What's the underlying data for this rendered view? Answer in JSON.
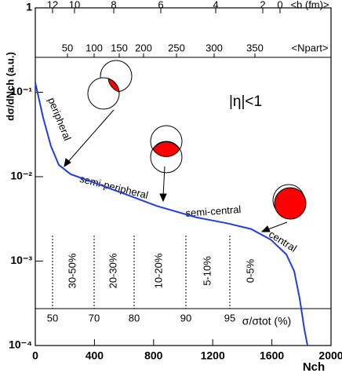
{
  "chart_data": {
    "type": "line",
    "xlabel": "Nch",
    "ylabel": "dσ/dNch (a.u.)",
    "x": [
      0,
      53,
      106,
      159,
      239,
      398,
      610,
      822,
      1088,
      1300,
      1459,
      1592,
      1698,
      1751,
      1788,
      1820,
      1841
    ],
    "series": [
      {
        "name": "dσ/dNch",
        "color": "#1f3fe0",
        "values": [
          0.13,
          0.05,
          0.023,
          0.0138,
          0.0107,
          0.0085,
          0.0062,
          0.0045,
          0.0033,
          0.0028,
          0.0024,
          0.0018,
          0.0012,
          0.00076,
          0.00036,
          0.000155,
          0.0001
        ]
      }
    ],
    "xlim": [
      0,
      2000
    ],
    "xticks": [
      0,
      400,
      800,
      1200,
      1600,
      2000
    ],
    "ylim": [
      0.0001,
      1
    ],
    "log_y": true,
    "yticks": [
      {
        "value": 0.0001,
        "label": "10⁻⁴"
      },
      {
        "value": 0.001,
        "label": "10⁻³"
      },
      {
        "value": 0.01,
        "label": "10⁻²"
      },
      {
        "value": 0.1,
        "label": "10⁻¹"
      },
      {
        "value": 1,
        "label": "1"
      }
    ],
    "b_axis": {
      "label": "<b (fm)>",
      "ticks": [
        12,
        10,
        8,
        6,
        4,
        2,
        0
      ]
    },
    "npart_axis": {
      "label": "<Npart>",
      "ticks": [
        50,
        100,
        150,
        200,
        250,
        300,
        350
      ]
    },
    "centrality_axis": {
      "label": "σ/σtot (%)",
      "ticks": [
        50,
        70,
        80,
        90,
        95
      ]
    },
    "classes": [
      "30-50%",
      "20-30%",
      "10-20%",
      "5-10%",
      "0-5%"
    ],
    "annotations": [
      "peripheral",
      "semi-peripheral",
      "semi-central",
      "central",
      "|η|<1"
    ]
  }
}
